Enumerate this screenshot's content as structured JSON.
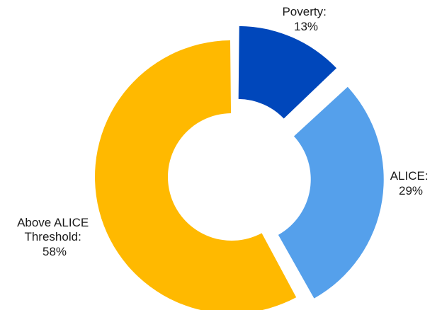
{
  "chart_data": {
    "type": "pie",
    "variant": "donut",
    "title": "",
    "slices": [
      {
        "label": "Poverty:",
        "value": 13,
        "value_label": "13%",
        "color": "#0047bb"
      },
      {
        "label": "ALICE:",
        "value": 29,
        "value_label": "29%",
        "color": "#55a0eb"
      },
      {
        "label_lines": [
          "Above ALICE",
          "Threshold:"
        ],
        "value": 58,
        "value_label": "58%",
        "color": "#ffb900"
      }
    ],
    "legend": "none",
    "labels": "outside slices"
  }
}
